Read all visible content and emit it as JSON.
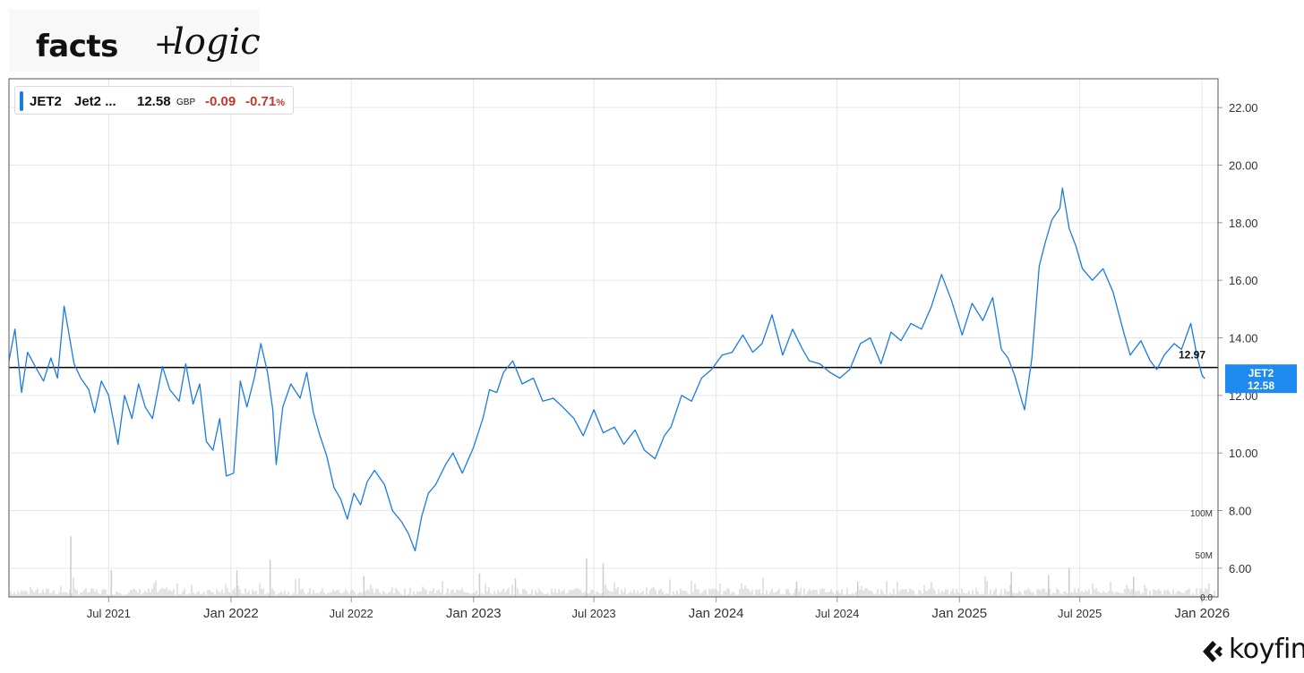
{
  "brand": {
    "facts": "facts",
    "plus": "+",
    "logic": "logic"
  },
  "legend": {
    "ticker": "JET2",
    "name": "Jet2 ...",
    "price": "12.58",
    "currency": "GBP",
    "change": "-0.09",
    "change_pct": "-0.71",
    "pct_sign": "%"
  },
  "colors": {
    "line": "#1a7be3",
    "negative": "#c0392b",
    "volume": "#cccccc",
    "reference_line": "#000000"
  },
  "chart_data": {
    "type": "line",
    "series": [
      {
        "name": "JET2",
        "x": [
          "2021-02-01",
          "2021-02-10",
          "2021-02-20",
          "2021-03-01",
          "2021-03-15",
          "2021-03-25",
          "2021-04-05",
          "2021-04-15",
          "2021-04-25",
          "2021-05-01",
          "2021-05-10",
          "2021-05-20",
          "2021-06-01",
          "2021-06-10",
          "2021-06-20",
          "2021-07-01",
          "2021-07-15",
          "2021-07-25",
          "2021-08-05",
          "2021-08-15",
          "2021-08-25",
          "2021-09-05",
          "2021-09-20",
          "2021-10-01",
          "2021-10-15",
          "2021-10-25",
          "2021-11-05",
          "2021-11-15",
          "2021-11-25",
          "2021-12-05",
          "2021-12-15",
          "2021-12-25",
          "2022-01-05",
          "2022-01-15",
          "2022-01-25",
          "2022-02-05",
          "2022-02-15",
          "2022-02-25",
          "2022-03-05",
          "2022-03-10",
          "2022-03-20",
          "2022-04-01",
          "2022-04-15",
          "2022-04-25",
          "2022-05-05",
          "2022-05-15",
          "2022-05-25",
          "2022-06-05",
          "2022-06-15",
          "2022-06-25",
          "2022-07-05",
          "2022-07-15",
          "2022-07-25",
          "2022-08-05",
          "2022-08-20",
          "2022-09-01",
          "2022-09-15",
          "2022-09-25",
          "2022-10-05",
          "2022-10-15",
          "2022-10-25",
          "2022-11-05",
          "2022-11-20",
          "2022-12-01",
          "2022-12-15",
          "2023-01-01",
          "2023-01-15",
          "2023-01-25",
          "2023-02-05",
          "2023-02-15",
          "2023-03-01",
          "2023-03-15",
          "2023-04-01",
          "2023-04-15",
          "2023-05-01",
          "2023-05-15",
          "2023-06-01",
          "2023-06-15",
          "2023-07-01",
          "2023-07-15",
          "2023-08-01",
          "2023-08-15",
          "2023-09-01",
          "2023-09-15",
          "2023-10-01",
          "2023-10-15",
          "2023-10-25",
          "2023-11-10",
          "2023-11-25",
          "2023-12-10",
          "2023-12-25",
          "2024-01-10",
          "2024-01-25",
          "2024-02-10",
          "2024-02-25",
          "2024-03-10",
          "2024-03-25",
          "2024-04-10",
          "2024-04-25",
          "2024-05-10",
          "2024-05-20",
          "2024-06-05",
          "2024-06-20",
          "2024-07-05",
          "2024-07-20",
          "2024-08-05",
          "2024-08-20",
          "2024-09-05",
          "2024-09-20",
          "2024-10-05",
          "2024-10-20",
          "2024-11-05",
          "2024-11-20",
          "2024-12-05",
          "2024-12-20",
          "2025-01-05",
          "2025-01-20",
          "2025-02-05",
          "2025-02-20",
          "2025-03-05",
          "2025-03-15",
          "2025-03-25",
          "2025-04-05",
          "2025-04-09",
          "2025-04-20",
          "2025-05-01",
          "2025-05-10",
          "2025-05-20",
          "2025-06-01",
          "2025-06-05",
          "2025-06-15",
          "2025-06-25",
          "2025-07-05",
          "2025-07-20",
          "2025-08-05",
          "2025-08-20",
          "2025-09-05",
          "2025-09-15",
          "2025-10-01",
          "2025-10-15",
          "2025-10-25",
          "2025-11-05",
          "2025-11-20",
          "2025-12-01",
          "2025-12-15",
          "2025-12-25",
          "2026-01-01",
          "2026-01-05"
        ],
        "values": [
          13.2,
          14.3,
          12.1,
          13.5,
          12.9,
          12.5,
          13.3,
          12.6,
          15.1,
          14.3,
          13.1,
          12.6,
          12.2,
          11.4,
          12.5,
          12.0,
          10.3,
          12.0,
          11.2,
          12.4,
          11.6,
          11.2,
          13.0,
          12.2,
          11.8,
          13.1,
          11.7,
          12.4,
          10.4,
          10.1,
          11.2,
          9.2,
          9.3,
          12.5,
          11.6,
          12.6,
          13.8,
          12.8,
          11.5,
          9.6,
          11.6,
          12.4,
          11.9,
          12.8,
          11.4,
          10.6,
          9.9,
          8.8,
          8.4,
          7.7,
          8.6,
          8.2,
          9.0,
          9.4,
          8.9,
          8.0,
          7.6,
          7.2,
          6.6,
          7.8,
          8.6,
          8.9,
          9.6,
          10.0,
          9.3,
          10.2,
          11.2,
          12.2,
          12.1,
          12.8,
          13.2,
          12.4,
          12.6,
          11.8,
          11.9,
          11.6,
          11.2,
          10.6,
          11.5,
          10.7,
          10.9,
          10.3,
          10.8,
          10.1,
          9.8,
          10.6,
          10.9,
          12.0,
          11.8,
          12.6,
          12.9,
          13.4,
          13.5,
          14.1,
          13.5,
          13.8,
          14.8,
          13.4,
          14.3,
          13.6,
          13.2,
          13.1,
          12.8,
          12.6,
          12.9,
          13.8,
          14.0,
          13.1,
          14.2,
          13.9,
          14.5,
          14.3,
          15.1,
          16.2,
          15.3,
          14.1,
          15.2,
          14.6,
          15.4,
          13.6,
          13.3,
          12.7,
          11.8,
          11.5,
          13.3,
          16.5,
          17.3,
          18.1,
          18.5,
          19.2,
          17.8,
          17.2,
          16.4,
          16.0,
          16.4,
          15.6,
          14.2,
          13.4,
          13.9,
          13.2,
          12.9,
          13.4,
          13.8,
          13.6,
          14.5,
          13.3,
          12.7,
          12.58
        ]
      }
    ],
    "reference_line": {
      "value": 12.97,
      "label": "12.97"
    },
    "last_value_label": {
      "name": "JET2",
      "value": "12.58"
    },
    "y_ticks": [
      "22.00",
      "20.00",
      "18.00",
      "16.00",
      "14.00",
      "12.00",
      "10.00",
      "8.00",
      "6.00"
    ],
    "ylim": [
      5,
      23
    ],
    "x_ticks": [
      {
        "label": "Jul 2021",
        "date": "2021-07-01",
        "major": false
      },
      {
        "label": "Jan 2022",
        "date": "2022-01-01",
        "major": true
      },
      {
        "label": "Jul 2022",
        "date": "2022-07-01",
        "major": false
      },
      {
        "label": "Jan 2023",
        "date": "2023-01-01",
        "major": true
      },
      {
        "label": "Jul 2023",
        "date": "2023-07-01",
        "major": false
      },
      {
        "label": "Jan 2024",
        "date": "2024-01-01",
        "major": true
      },
      {
        "label": "Jul 2024",
        "date": "2024-07-01",
        "major": false
      },
      {
        "label": "Jan 2025",
        "date": "2025-01-01",
        "major": true
      },
      {
        "label": "Jul 2025",
        "date": "2025-07-01",
        "major": false
      },
      {
        "label": "Jan 2026",
        "date": "2026-01-01",
        "major": true
      }
    ],
    "xlim": [
      "2021-02-01",
      "2026-01-25"
    ],
    "volume": {
      "ticks": [
        "100M",
        "50M",
        "0.0"
      ],
      "max": 100,
      "unit": "M",
      "spikes": [
        {
          "date": "2021-05-05",
          "value": 72
        },
        {
          "date": "2021-07-05",
          "value": 32
        },
        {
          "date": "2022-01-10",
          "value": 32
        },
        {
          "date": "2022-03-01",
          "value": 44
        },
        {
          "date": "2022-07-20",
          "value": 25
        },
        {
          "date": "2023-01-10",
          "value": 28
        },
        {
          "date": "2023-03-05",
          "value": 22
        },
        {
          "date": "2023-06-20",
          "value": 46
        },
        {
          "date": "2023-07-15",
          "value": 40
        },
        {
          "date": "2024-05-01",
          "value": 18
        },
        {
          "date": "2024-08-01",
          "value": 18
        },
        {
          "date": "2025-03-20",
          "value": 30
        },
        {
          "date": "2025-05-15",
          "value": 26
        },
        {
          "date": "2025-06-15",
          "value": 34
        },
        {
          "date": "2025-09-20",
          "value": 24
        }
      ]
    },
    "grid": true
  },
  "footer": {
    "logo": "koyfin"
  }
}
